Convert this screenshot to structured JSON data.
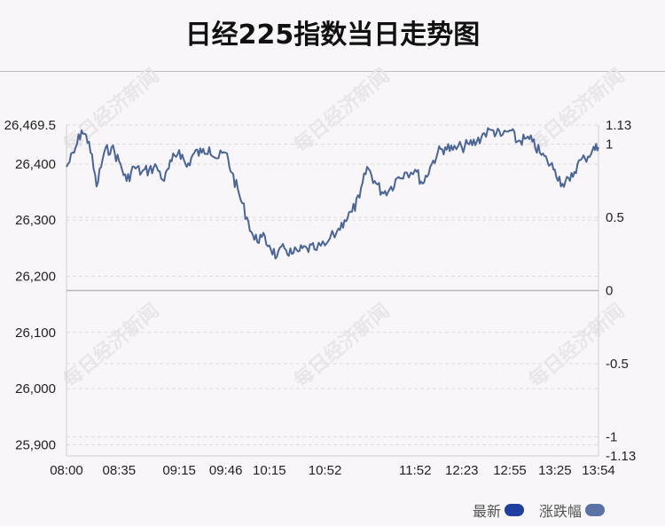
{
  "title": "日经225指数当日走势图",
  "watermark": "每日经济新闻",
  "legend": [
    {
      "label": "最新",
      "color": "#1f3fa0"
    },
    {
      "label": "涨跌幅",
      "color": "#5a72a6"
    }
  ],
  "colors": {
    "line": "#4a6596",
    "zero_line": "#b8b8b8",
    "grid": "#dddddd"
  },
  "chart_data": {
    "type": "line",
    "title": "日经225指数当日走势图",
    "xlabel": "",
    "ylabel": "",
    "x_ticks": [
      "08:00",
      "08:35",
      "09:15",
      "09:46",
      "10:15",
      "10:52",
      "11:52",
      "12:23",
      "12:55",
      "13:25",
      "13:54"
    ],
    "y_left_ticks": [
      "26,469.5",
      "26,400",
      "26,300",
      "26,200",
      "26,100",
      "26,000",
      "25,900"
    ],
    "y_left_values": [
      26469.5,
      26400,
      26300,
      26200,
      26100,
      26000,
      25900
    ],
    "y_right_ticks": [
      "1.13",
      "1",
      "0.5",
      "0",
      "-0.5",
      "-1",
      "-1.13"
    ],
    "y_right_values": [
      1.13,
      1,
      0.5,
      0,
      -0.5,
      -1,
      -1.13
    ],
    "ylim_right": [
      -1.13,
      1.13
    ],
    "grid": true,
    "series": [
      {
        "name": "最新",
        "x": [
          "08:00",
          "08:05",
          "08:10",
          "08:15",
          "08:20",
          "08:25",
          "08:30",
          "08:35",
          "08:40",
          "08:45",
          "08:50",
          "08:55",
          "09:00",
          "09:05",
          "09:10",
          "09:15",
          "09:20",
          "09:25",
          "09:30",
          "09:35",
          "09:40",
          "09:46",
          "09:50",
          "09:55",
          "10:00",
          "10:05",
          "10:10",
          "10:15",
          "10:20",
          "10:25",
          "10:30",
          "10:35",
          "10:40",
          "10:45",
          "10:52",
          "11:00",
          "11:05",
          "11:10",
          "11:15",
          "11:20",
          "11:25",
          "11:30",
          "11:35",
          "11:40",
          "11:45",
          "11:52",
          "11:57",
          "12:02",
          "12:07",
          "12:12",
          "12:17",
          "12:23",
          "12:28",
          "12:33",
          "12:38",
          "12:44",
          "12:49",
          "12:55",
          "13:00",
          "13:05",
          "13:10",
          "13:15",
          "13:20",
          "13:25",
          "13:30",
          "13:35",
          "13:40",
          "13:45",
          "13:50",
          "13:54"
        ],
        "y": [
          26395,
          26420,
          26460,
          26440,
          26360,
          26420,
          26430,
          26405,
          26370,
          26395,
          26385,
          26390,
          26395,
          26370,
          26405,
          26425,
          26395,
          26420,
          26420,
          26430,
          26410,
          26420,
          26385,
          26345,
          26305,
          26265,
          26270,
          26255,
          26235,
          26250,
          26240,
          26245,
          26250,
          26248,
          26255,
          26280,
          26300,
          26315,
          26340,
          26395,
          26370,
          26350,
          26355,
          26375,
          26385,
          26390,
          26365,
          26395,
          26420,
          26430,
          26425,
          26430,
          26435,
          26440,
          26455,
          26460,
          26450,
          26460,
          26440,
          26445,
          26440,
          26420,
          26405,
          26390,
          26365,
          26370,
          26400,
          26410,
          26425,
          26430
        ]
      }
    ]
  }
}
